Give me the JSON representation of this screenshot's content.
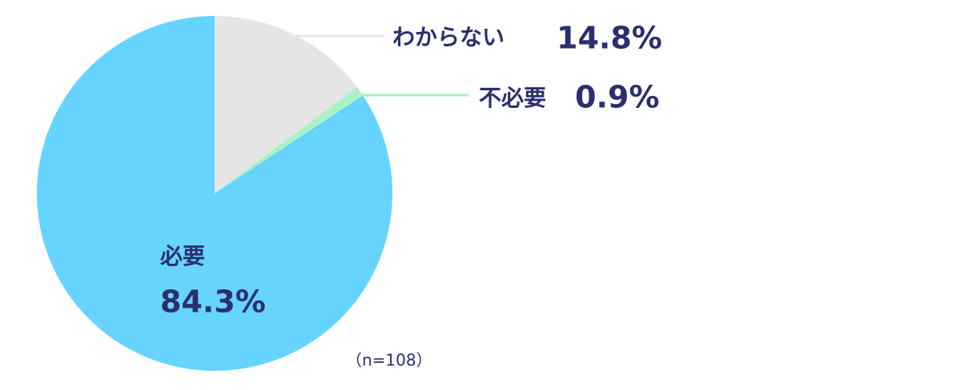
{
  "chart_data": {
    "type": "pie",
    "categories": [
      "わからない",
      "不必要",
      "必要"
    ],
    "values": [
      14.8,
      0.9,
      84.3
    ],
    "value_labels": [
      "14.8%",
      "0.9%",
      "84.3%"
    ],
    "colors": [
      "#e5e5e5",
      "#a6f3c6",
      "#66d4ff"
    ],
    "note": "（n=108）"
  }
}
